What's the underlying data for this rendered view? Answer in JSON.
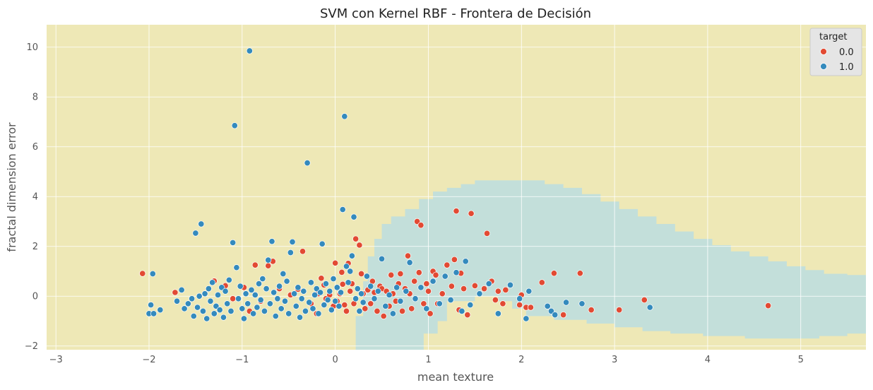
{
  "chart_data": {
    "type": "scatter",
    "title": "SVM con Kernel RBF - Frontera de Decisión",
    "xlabel": "mean texture",
    "ylabel": "fractal dimension error",
    "xlim": [
      -3.1,
      5.7
    ],
    "ylim": [
      -2.15,
      10.9
    ],
    "xticks": [
      -3,
      -2,
      -1,
      0,
      1,
      2,
      3,
      4,
      5
    ],
    "yticks": [
      -2,
      0,
      2,
      4,
      6,
      8,
      10
    ],
    "grid": true,
    "legend": {
      "title": "target",
      "placement": "top-right",
      "entries": [
        "0.0",
        "1.0"
      ]
    },
    "colors": {
      "class_0": "#e24a33",
      "class_1": "#348abd",
      "region_0": "#eee8b6",
      "region_1": "#c3dfda",
      "grid": "#ffffff"
    },
    "decision_region_class_1": [
      [
        0.22,
        -2.15
      ],
      [
        0.22,
        -0.8
      ],
      [
        0.3,
        -0.8
      ],
      [
        0.3,
        0.6
      ],
      [
        0.35,
        0.6
      ],
      [
        0.35,
        1.6
      ],
      [
        0.42,
        1.6
      ],
      [
        0.42,
        2.3
      ],
      [
        0.5,
        2.3
      ],
      [
        0.5,
        2.9
      ],
      [
        0.6,
        2.9
      ],
      [
        0.6,
        3.2
      ],
      [
        0.75,
        3.2
      ],
      [
        0.75,
        3.5
      ],
      [
        0.9,
        3.5
      ],
      [
        0.9,
        3.9
      ],
      [
        1.05,
        3.9
      ],
      [
        1.05,
        4.2
      ],
      [
        1.2,
        4.2
      ],
      [
        1.2,
        4.35
      ],
      [
        1.35,
        4.35
      ],
      [
        1.35,
        4.5
      ],
      [
        1.5,
        4.5
      ],
      [
        1.5,
        4.65
      ],
      [
        2.25,
        4.65
      ],
      [
        2.25,
        4.5
      ],
      [
        2.45,
        4.5
      ],
      [
        2.45,
        4.35
      ],
      [
        2.65,
        4.35
      ],
      [
        2.65,
        4.1
      ],
      [
        2.85,
        4.1
      ],
      [
        2.85,
        3.8
      ],
      [
        3.05,
        3.8
      ],
      [
        3.05,
        3.5
      ],
      [
        3.25,
        3.5
      ],
      [
        3.25,
        3.2
      ],
      [
        3.45,
        3.2
      ],
      [
        3.45,
        2.9
      ],
      [
        3.65,
        2.9
      ],
      [
        3.65,
        2.6
      ],
      [
        3.85,
        2.6
      ],
      [
        3.85,
        2.3
      ],
      [
        4.05,
        2.3
      ],
      [
        4.05,
        2.05
      ],
      [
        4.25,
        2.05
      ],
      [
        4.25,
        1.8
      ],
      [
        4.45,
        1.8
      ],
      [
        4.45,
        1.6
      ],
      [
        4.65,
        1.6
      ],
      [
        4.65,
        1.4
      ],
      [
        4.85,
        1.4
      ],
      [
        4.85,
        1.2
      ],
      [
        5.05,
        1.2
      ],
      [
        5.05,
        1.05
      ],
      [
        5.25,
        1.05
      ],
      [
        5.25,
        0.9
      ],
      [
        5.5,
        0.9
      ],
      [
        5.5,
        0.85
      ],
      [
        5.7,
        0.85
      ],
      [
        5.7,
        -1.5
      ],
      [
        5.5,
        -1.5
      ],
      [
        5.5,
        -1.6
      ],
      [
        5.2,
        -1.6
      ],
      [
        5.2,
        -1.7
      ],
      [
        4.4,
        -1.7
      ],
      [
        4.4,
        -1.6
      ],
      [
        3.95,
        -1.6
      ],
      [
        3.95,
        -1.5
      ],
      [
        3.6,
        -1.5
      ],
      [
        3.6,
        -1.4
      ],
      [
        3.3,
        -1.4
      ],
      [
        3.3,
        -1.25
      ],
      [
        3.0,
        -1.25
      ],
      [
        3.0,
        -1.1
      ],
      [
        2.7,
        -1.1
      ],
      [
        2.7,
        -0.95
      ],
      [
        2.35,
        -0.95
      ],
      [
        2.35,
        -0.8
      ],
      [
        2.05,
        -0.8
      ],
      [
        2.05,
        -0.5
      ],
      [
        1.9,
        -0.5
      ],
      [
        1.9,
        -0.2
      ],
      [
        1.75,
        -0.2
      ],
      [
        1.75,
        0.0
      ],
      [
        1.5,
        0.0
      ],
      [
        1.5,
        -0.2
      ],
      [
        1.2,
        -0.2
      ],
      [
        1.2,
        -1.0
      ],
      [
        1.1,
        -1.0
      ],
      [
        1.1,
        -1.5
      ],
      [
        0.95,
        -1.5
      ],
      [
        0.95,
        -2.15
      ]
    ],
    "series": [
      {
        "name": "0.0",
        "points": [
          [
            -2.07,
            0.91
          ],
          [
            -1.72,
            0.15
          ],
          [
            -1.3,
            0.61
          ],
          [
            -1.18,
            0.42
          ],
          [
            -1.1,
            -0.1
          ],
          [
            -0.98,
            0.35
          ],
          [
            -0.92,
            -0.6
          ],
          [
            -0.86,
            1.25
          ],
          [
            -0.8,
            -0.2
          ],
          [
            -0.72,
            1.22
          ],
          [
            -0.67,
            1.4
          ],
          [
            -0.6,
            0.3
          ],
          [
            -0.48,
            0.05
          ],
          [
            -0.4,
            0.28
          ],
          [
            -0.35,
            1.8
          ],
          [
            -0.26,
            -0.3
          ],
          [
            -0.2,
            -0.7
          ],
          [
            -0.18,
            0.1
          ],
          [
            -0.15,
            0.72
          ],
          [
            -0.12,
            0.45
          ],
          [
            -0.1,
            -0.1
          ],
          [
            -0.06,
            0.05
          ],
          [
            -0.02,
            -0.4
          ],
          [
            0.0,
            1.33
          ],
          [
            0.02,
            -0.2
          ],
          [
            0.05,
            0.1
          ],
          [
            0.07,
            0.96
          ],
          [
            0.08,
            0.48
          ],
          [
            0.1,
            -0.35
          ],
          [
            0.12,
            -0.6
          ],
          [
            0.14,
            1.32
          ],
          [
            0.16,
            0.2
          ],
          [
            0.18,
            0.5
          ],
          [
            0.2,
            -0.3
          ],
          [
            0.22,
            2.3
          ],
          [
            0.26,
            2.05
          ],
          [
            0.28,
            0.9
          ],
          [
            0.3,
            0.1
          ],
          [
            0.32,
            -0.5
          ],
          [
            0.35,
            0.25
          ],
          [
            0.38,
            -0.3
          ],
          [
            0.4,
            0.6
          ],
          [
            0.42,
            0.15
          ],
          [
            0.45,
            -0.6
          ],
          [
            0.48,
            0.4
          ],
          [
            0.5,
            0.3
          ],
          [
            0.52,
            -0.8
          ],
          [
            0.55,
            0.2
          ],
          [
            0.58,
            -0.4
          ],
          [
            0.6,
            0.85
          ],
          [
            0.62,
            0.1
          ],
          [
            0.65,
            -0.2
          ],
          [
            0.68,
            0.5
          ],
          [
            0.7,
            0.9
          ],
          [
            0.72,
            -0.6
          ],
          [
            0.75,
            0.3
          ],
          [
            0.78,
            1.62
          ],
          [
            0.8,
            0.1
          ],
          [
            0.82,
            -0.5
          ],
          [
            0.85,
            0.6
          ],
          [
            0.88,
            3.0
          ],
          [
            0.9,
            0.95
          ],
          [
            0.92,
            2.85
          ],
          [
            0.95,
            -0.3
          ],
          [
            0.98,
            0.5
          ],
          [
            1.0,
            0.2
          ],
          [
            1.02,
            -0.7
          ],
          [
            1.05,
            1.0
          ],
          [
            1.08,
            0.85
          ],
          [
            1.1,
            -0.3
          ],
          [
            1.15,
            0.1
          ],
          [
            1.2,
            1.25
          ],
          [
            1.25,
            0.4
          ],
          [
            1.28,
            1.47
          ],
          [
            1.3,
            3.42
          ],
          [
            1.33,
            -0.55
          ],
          [
            1.35,
            0.92
          ],
          [
            1.38,
            0.3
          ],
          [
            1.42,
            -0.75
          ],
          [
            1.46,
            3.32
          ],
          [
            1.5,
            0.42
          ],
          [
            1.6,
            0.3
          ],
          [
            1.63,
            2.52
          ],
          [
            1.68,
            0.6
          ],
          [
            1.72,
            -0.15
          ],
          [
            1.75,
            0.2
          ],
          [
            1.8,
            -0.3
          ],
          [
            1.83,
            0.25
          ],
          [
            1.98,
            -0.35
          ],
          [
            2.0,
            0.05
          ],
          [
            2.05,
            -0.45
          ],
          [
            2.1,
            -0.45
          ],
          [
            2.22,
            0.55
          ],
          [
            2.35,
            0.92
          ],
          [
            2.45,
            -0.75
          ],
          [
            2.63,
            0.92
          ],
          [
            2.75,
            -0.55
          ],
          [
            3.05,
            -0.55
          ],
          [
            3.32,
            -0.15
          ],
          [
            4.65,
            -0.38
          ]
        ]
      },
      {
        "name": "1.0",
        "points": [
          [
            -2.0,
            -0.7
          ],
          [
            -1.98,
            -0.35
          ],
          [
            -1.96,
            0.9
          ],
          [
            -1.95,
            -0.7
          ],
          [
            -1.88,
            -0.55
          ],
          [
            -1.7,
            -0.2
          ],
          [
            -1.65,
            0.25
          ],
          [
            -1.62,
            -0.5
          ],
          [
            -1.58,
            -0.3
          ],
          [
            -1.54,
            -0.1
          ],
          [
            -1.52,
            -0.8
          ],
          [
            -1.5,
            2.53
          ],
          [
            -1.48,
            -0.45
          ],
          [
            -1.46,
            0.0
          ],
          [
            -1.44,
            2.9
          ],
          [
            -1.42,
            -0.6
          ],
          [
            -1.4,
            0.1
          ],
          [
            -1.38,
            -0.9
          ],
          [
            -1.36,
            0.3
          ],
          [
            -1.34,
            -0.2
          ],
          [
            -1.32,
            0.55
          ],
          [
            -1.3,
            -0.7
          ],
          [
            -1.28,
            -0.4
          ],
          [
            -1.26,
            0.05
          ],
          [
            -1.24,
            -0.55
          ],
          [
            -1.22,
            0.35
          ],
          [
            -1.2,
            -0.85
          ],
          [
            -1.18,
            0.2
          ],
          [
            -1.16,
            -0.3
          ],
          [
            -1.14,
            0.65
          ],
          [
            -1.12,
            -0.6
          ],
          [
            -1.1,
            2.15
          ],
          [
            -1.08,
            6.85
          ],
          [
            -1.06,
            1.15
          ],
          [
            -1.04,
            -0.1
          ],
          [
            -1.02,
            0.4
          ],
          [
            -1.0,
            -0.5
          ],
          [
            -0.98,
            -0.9
          ],
          [
            -0.96,
            0.1
          ],
          [
            -0.94,
            -0.3
          ],
          [
            -0.92,
            9.85
          ],
          [
            -0.9,
            0.25
          ],
          [
            -0.88,
            -0.7
          ],
          [
            -0.86,
            0.05
          ],
          [
            -0.84,
            -0.45
          ],
          [
            -0.82,
            0.5
          ],
          [
            -0.8,
            -0.15
          ],
          [
            -0.78,
            0.7
          ],
          [
            -0.76,
            -0.6
          ],
          [
            -0.74,
            0.3
          ],
          [
            -0.72,
            1.45
          ],
          [
            -0.7,
            -0.3
          ],
          [
            -0.68,
            2.2
          ],
          [
            -0.66,
            0.15
          ],
          [
            -0.64,
            -0.8
          ],
          [
            -0.62,
            -0.1
          ],
          [
            -0.6,
            0.4
          ],
          [
            -0.58,
            -0.5
          ],
          [
            -0.56,
            0.9
          ],
          [
            -0.54,
            -0.2
          ],
          [
            -0.52,
            0.6
          ],
          [
            -0.5,
            -0.7
          ],
          [
            -0.48,
            1.75
          ],
          [
            -0.46,
            2.18
          ],
          [
            -0.44,
            0.1
          ],
          [
            -0.42,
            -0.4
          ],
          [
            -0.4,
            0.35
          ],
          [
            -0.38,
            -0.85
          ],
          [
            -0.36,
            -0.1
          ],
          [
            -0.34,
            0.2
          ],
          [
            -0.32,
            -0.6
          ],
          [
            -0.3,
            5.35
          ],
          [
            -0.28,
            -0.25
          ],
          [
            -0.26,
            0.55
          ],
          [
            -0.24,
            -0.5
          ],
          [
            -0.22,
            0.05
          ],
          [
            -0.2,
            0.3
          ],
          [
            -0.18,
            -0.7
          ],
          [
            -0.16,
            0.15
          ],
          [
            -0.14,
            2.1
          ],
          [
            -0.12,
            -0.35
          ],
          [
            -0.1,
            0.5
          ],
          [
            -0.08,
            -0.15
          ],
          [
            -0.06,
            0.2
          ],
          [
            -0.04,
            -0.55
          ],
          [
            -0.02,
            0.7
          ],
          [
            0.0,
            -0.2
          ],
          [
            0.02,
            0.35
          ],
          [
            0.04,
            -0.4
          ],
          [
            0.06,
            0.15
          ],
          [
            0.08,
            3.48
          ],
          [
            0.1,
            7.22
          ],
          [
            0.12,
            1.2
          ],
          [
            0.14,
            0.55
          ],
          [
            0.16,
            1.0
          ],
          [
            0.18,
            1.62
          ],
          [
            0.2,
            3.18
          ],
          [
            0.22,
            -0.1
          ],
          [
            0.24,
            0.3
          ],
          [
            0.26,
            -0.6
          ],
          [
            0.28,
            0.1
          ],
          [
            0.3,
            -0.25
          ],
          [
            0.34,
            0.8
          ],
          [
            0.38,
            0.4
          ],
          [
            0.42,
            -0.1
          ],
          [
            0.46,
            0.2
          ],
          [
            0.5,
            1.5
          ],
          [
            0.54,
            -0.4
          ],
          [
            0.58,
            0.05
          ],
          [
            0.62,
            -0.7
          ],
          [
            0.66,
            0.35
          ],
          [
            0.7,
            -0.2
          ],
          [
            0.76,
            0.2
          ],
          [
            0.8,
            1.35
          ],
          [
            0.86,
            -0.1
          ],
          [
            0.92,
            0.35
          ],
          [
            0.98,
            -0.5
          ],
          [
            1.05,
            0.6
          ],
          [
            1.12,
            -0.3
          ],
          [
            1.18,
            0.8
          ],
          [
            1.24,
            -0.15
          ],
          [
            1.3,
            0.95
          ],
          [
            1.36,
            -0.6
          ],
          [
            1.4,
            1.4
          ],
          [
            1.45,
            -0.35
          ],
          [
            1.55,
            0.1
          ],
          [
            1.65,
            0.5
          ],
          [
            1.75,
            -0.7
          ],
          [
            1.88,
            0.45
          ],
          [
            1.98,
            -0.1
          ],
          [
            2.05,
            -0.9
          ],
          [
            2.08,
            0.2
          ],
          [
            2.28,
            -0.4
          ],
          [
            2.32,
            -0.6
          ],
          [
            2.36,
            -0.75
          ],
          [
            2.48,
            -0.25
          ],
          [
            2.65,
            -0.3
          ],
          [
            3.38,
            -0.45
          ]
        ]
      }
    ]
  }
}
